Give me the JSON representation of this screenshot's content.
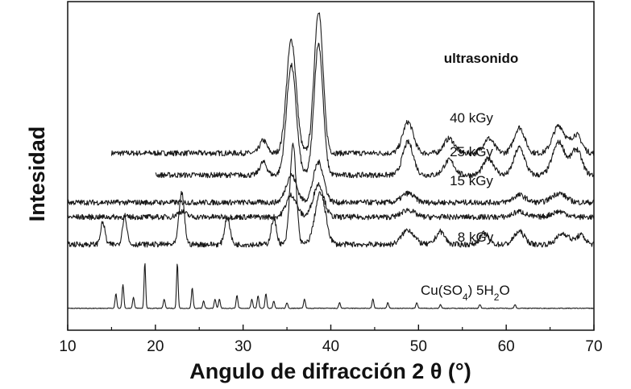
{
  "chart_data": {
    "type": "line",
    "title": "",
    "xlabel": "Angulo de difracción 2 θ (°)",
    "ylabel": "Intesidad",
    "xlim": [
      10,
      70
    ],
    "x_ticks": [
      10,
      20,
      30,
      40,
      50,
      60,
      70
    ],
    "y_ticks": [],
    "grid": false,
    "legend": "none",
    "series": [
      {
        "name": "ultrasonido",
        "label_bold": true,
        "x_range": [
          15,
          70
        ],
        "baseline": 0.52,
        "peaks": [
          [
            32.3,
            0.07,
            0.4
          ],
          [
            35.5,
            0.62,
            0.55
          ],
          [
            38.6,
            0.78,
            0.5
          ],
          [
            48.8,
            0.17,
            0.6
          ],
          [
            53.5,
            0.08,
            0.6
          ],
          [
            58.0,
            0.08,
            0.6
          ],
          [
            61.5,
            0.14,
            0.6
          ],
          [
            66.0,
            0.15,
            0.7
          ],
          [
            68.0,
            0.1,
            0.6
          ]
        ]
      },
      {
        "name": "40 kGy",
        "x_range": [
          20,
          70
        ],
        "baseline": 0.4,
        "peaks": [
          [
            32.3,
            0.07,
            0.4
          ],
          [
            35.5,
            0.6,
            0.55
          ],
          [
            38.6,
            0.72,
            0.5
          ],
          [
            48.8,
            0.18,
            0.6
          ],
          [
            53.5,
            0.08,
            0.6
          ],
          [
            58.0,
            0.09,
            0.6
          ],
          [
            61.5,
            0.15,
            0.6
          ],
          [
            66.0,
            0.18,
            0.7
          ],
          [
            68.0,
            0.14,
            0.6
          ]
        ]
      },
      {
        "name": "25 kGy",
        "x_range": [
          10,
          70
        ],
        "baseline": 0.25,
        "peaks": [
          [
            35.5,
            0.15,
            0.6
          ],
          [
            38.6,
            0.22,
            0.6
          ],
          [
            48.8,
            0.05,
            0.7
          ],
          [
            61.5,
            0.04,
            0.7
          ],
          [
            66.0,
            0.05,
            0.8
          ]
        ]
      },
      {
        "name": "15 kGy",
        "x_range": [
          10,
          70
        ],
        "baseline": 0.17,
        "peaks": [
          [
            23.0,
            0.03,
            0.5
          ],
          [
            35.5,
            0.12,
            0.6
          ],
          [
            38.6,
            0.18,
            0.6
          ],
          [
            48.8,
            0.04,
            0.7
          ],
          [
            61.5,
            0.03,
            0.7
          ],
          [
            66.0,
            0.03,
            0.8
          ]
        ]
      },
      {
        "name": "8 kGy",
        "x_range": [
          10,
          70
        ],
        "baseline": 0.02,
        "peaks": [
          [
            14.0,
            0.12,
            0.25
          ],
          [
            16.5,
            0.16,
            0.25
          ],
          [
            23.0,
            0.28,
            0.3
          ],
          [
            28.2,
            0.15,
            0.3
          ],
          [
            33.5,
            0.14,
            0.3
          ],
          [
            35.7,
            0.55,
            0.35
          ],
          [
            38.8,
            0.28,
            0.6
          ],
          [
            48.8,
            0.08,
            0.7
          ],
          [
            52.5,
            0.07,
            0.5
          ],
          [
            57.5,
            0.06,
            0.5
          ],
          [
            61.5,
            0.07,
            0.6
          ],
          [
            66.5,
            0.06,
            0.7
          ],
          [
            68.5,
            0.05,
            0.5
          ]
        ]
      },
      {
        "name": "Cu(SO4) 5H2O",
        "label_parts": [
          "Cu(SO",
          "4",
          ") 5H",
          "2",
          "O"
        ],
        "x_range": [
          10,
          70
        ],
        "baseline": -0.33,
        "peaks": [
          [
            15.5,
            0.08,
            0.1
          ],
          [
            16.3,
            0.13,
            0.1
          ],
          [
            17.5,
            0.06,
            0.1
          ],
          [
            18.8,
            0.25,
            0.09
          ],
          [
            21.0,
            0.05,
            0.1
          ],
          [
            22.5,
            0.25,
            0.09
          ],
          [
            24.2,
            0.11,
            0.1
          ],
          [
            25.5,
            0.04,
            0.1
          ],
          [
            26.8,
            0.05,
            0.1
          ],
          [
            27.3,
            0.05,
            0.1
          ],
          [
            29.3,
            0.07,
            0.1
          ],
          [
            31.0,
            0.05,
            0.1
          ],
          [
            31.7,
            0.07,
            0.1
          ],
          [
            32.6,
            0.08,
            0.1
          ],
          [
            33.5,
            0.04,
            0.1
          ],
          [
            35.0,
            0.03,
            0.1
          ],
          [
            37.0,
            0.05,
            0.1
          ],
          [
            41.0,
            0.03,
            0.1
          ],
          [
            44.8,
            0.05,
            0.1
          ],
          [
            46.5,
            0.03,
            0.1
          ],
          [
            49.8,
            0.03,
            0.1
          ],
          [
            52.5,
            0.02,
            0.1
          ],
          [
            57.0,
            0.02,
            0.1
          ],
          [
            61.0,
            0.02,
            0.1
          ]
        ]
      }
    ]
  }
}
